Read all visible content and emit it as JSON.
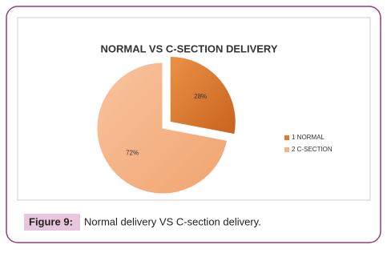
{
  "chart_data": {
    "type": "pie",
    "title": "NORMAL VS C-SECTION DELIVERY",
    "categories": [
      "1 NORMAL",
      "2 C-SECTION"
    ],
    "values": [
      28,
      72
    ],
    "value_labels": [
      "28%",
      "72%"
    ],
    "colors": [
      "#e07b2b",
      "#f7b58a"
    ],
    "legend": "right"
  },
  "caption": {
    "label": "Figure 9:",
    "text": "Normal delivery VS C-section delivery."
  }
}
